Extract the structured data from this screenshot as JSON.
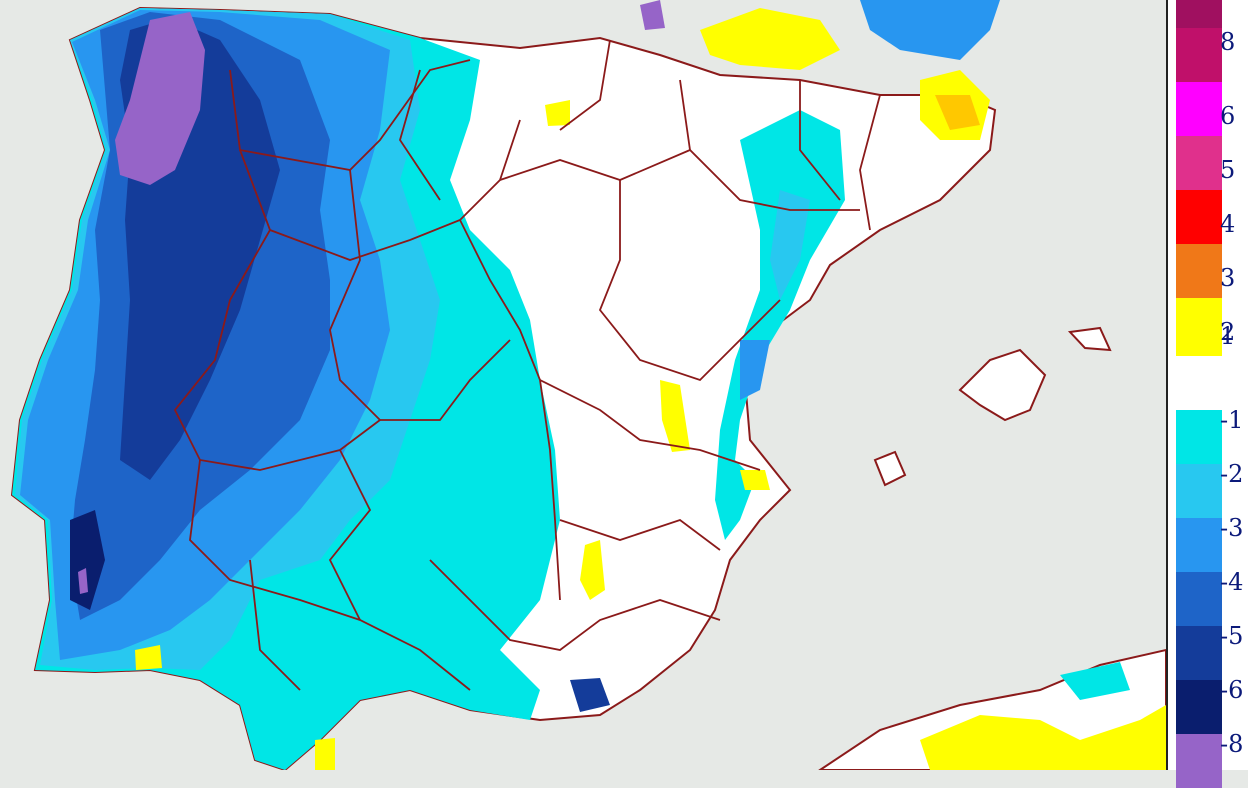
{
  "legend": {
    "entries": [
      {
        "label": "8",
        "color": "#c0106a"
      },
      {
        "label": "6",
        "color": "#ff00ff"
      },
      {
        "label": "5",
        "color": "#e0308c"
      },
      {
        "label": "4",
        "color": "#ff0000"
      },
      {
        "label": "3",
        "color": "#f07818"
      },
      {
        "label": "2",
        "color": "#ffc800"
      },
      {
        "label": "1",
        "color": "#ffff00"
      },
      {
        "label": "-1",
        "color": "#00e6e6"
      },
      {
        "label": "-2",
        "color": "#28c8f0"
      },
      {
        "label": "-3",
        "color": "#2896f0"
      },
      {
        "label": "-4",
        "color": "#1e64c8"
      },
      {
        "label": "-5",
        "color": "#143c9a"
      },
      {
        "label": "-6",
        "color": "#0a1e6e"
      },
      {
        "label": "-8",
        "color": "#9664c8"
      }
    ],
    "top_color": "#a01060",
    "bottom_color": "#7e5aa8"
  },
  "map": {
    "sea_color": "#e6e9e6",
    "land_color": "#ffffff",
    "border_color": "#8b1a1a"
  }
}
